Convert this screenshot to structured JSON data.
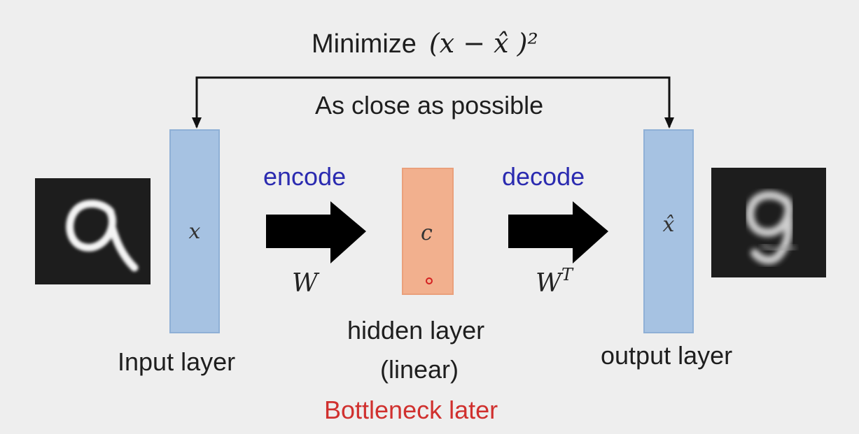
{
  "objective": {
    "label": "Minimize",
    "formula": "(x − x̂ )²"
  },
  "subtitle": "As close as possible",
  "input": {
    "symbol": "x",
    "label": "Input layer"
  },
  "encode": {
    "label": "encode",
    "weight": "W"
  },
  "hidden": {
    "symbol": "c",
    "label_line1": "hidden layer",
    "label_line2": "(linear)",
    "note": "Bottleneck later"
  },
  "decode": {
    "label": "decode",
    "weight": "W",
    "weight_superscript": "T"
  },
  "output": {
    "symbol": "x̂",
    "label": "output layer"
  },
  "colors": {
    "layer_fill": "#a6c2e2",
    "hidden_fill": "#f2b08e",
    "operation_text": "#2b2bb0",
    "note_text": "#d0302e",
    "background": "#eeeeee"
  },
  "icons": {
    "input_image": "handwritten-digit-9",
    "output_image": "reconstructed-digit-9"
  }
}
